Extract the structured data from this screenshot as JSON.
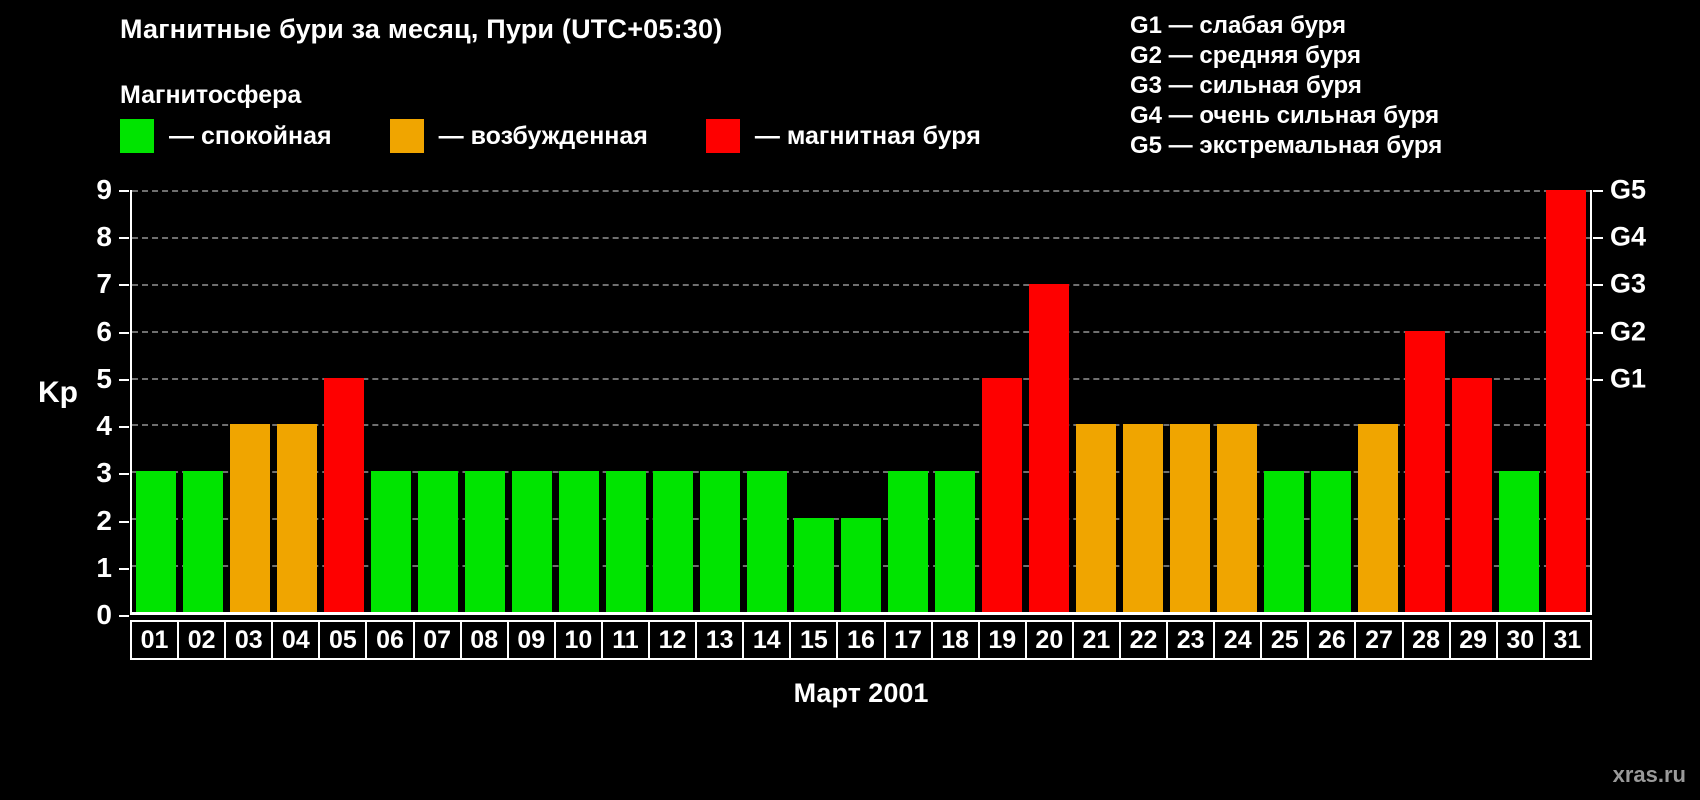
{
  "title": "Магнитные бури за месяц, Пури (UTC+05:30)",
  "legend": {
    "heading": "Магнитосфера",
    "items": [
      {
        "name": "quiet",
        "label": "— спокойная",
        "color": "#00e400"
      },
      {
        "name": "excited",
        "label": "— возбужденная",
        "color": "#f0a500"
      },
      {
        "name": "storm",
        "label": "— магнитная буря",
        "color": "#fe0000"
      }
    ]
  },
  "g_legend": [
    "G1 — слабая буря",
    "G2 — средняя буря",
    "G3 — сильная буря",
    "G4 — очень сильная буря",
    "G5 — экстремальная буря"
  ],
  "y_axis": {
    "label": "Kp",
    "ticks": [
      0,
      1,
      2,
      3,
      4,
      5,
      6,
      7,
      8,
      9
    ]
  },
  "right_axis": [
    {
      "label": "G1",
      "value": 5
    },
    {
      "label": "G2",
      "value": 6
    },
    {
      "label": "G3",
      "value": 7
    },
    {
      "label": "G4",
      "value": 8
    },
    {
      "label": "G5",
      "value": 9
    }
  ],
  "x_axis": {
    "month_label": "Март 2001"
  },
  "watermark": "xras.ru",
  "chart_data": {
    "type": "bar",
    "title": "Магнитные бури за месяц, Пури (UTC+05:30)",
    "xlabel": "Март 2001",
    "ylabel": "Kp",
    "ylim": [
      0,
      9
    ],
    "grid": "horizontal-dashed",
    "legend_position": "top-left",
    "categories": [
      "01",
      "02",
      "03",
      "04",
      "05",
      "06",
      "07",
      "08",
      "09",
      "10",
      "11",
      "12",
      "13",
      "14",
      "15",
      "16",
      "17",
      "18",
      "19",
      "20",
      "21",
      "22",
      "23",
      "24",
      "25",
      "26",
      "27",
      "28",
      "29",
      "30",
      "31"
    ],
    "values": [
      3,
      3,
      4,
      4,
      5,
      3,
      3,
      3,
      3,
      3,
      3,
      3,
      3,
      3,
      2,
      2,
      3,
      3,
      5,
      7,
      4,
      4,
      4,
      4,
      3,
      3,
      4,
      6,
      5,
      3,
      9
    ],
    "color_rules": [
      {
        "max": 3,
        "color": "#00e400",
        "meaning": "спокойная"
      },
      {
        "max": 4,
        "color": "#f0a500",
        "meaning": "возбужденная"
      },
      {
        "max": 9,
        "color": "#fe0000",
        "meaning": "магнитная буря"
      }
    ]
  }
}
